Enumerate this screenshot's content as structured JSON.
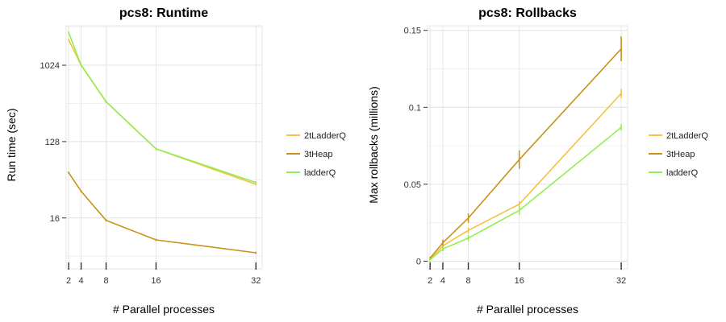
{
  "chart_data": [
    {
      "type": "line",
      "title": "pcs8: Runtime",
      "xlabel": "# Parallel processes",
      "ylabel": "Run time (sec)",
      "y_scale": "log2",
      "x": [
        2,
        4,
        8,
        16,
        32
      ],
      "xticks": [
        "2",
        "4",
        "8",
        "16",
        "32"
      ],
      "yticks": [
        "16",
        "128",
        "1024"
      ],
      "ytick_values": [
        16,
        128,
        1024
      ],
      "ylim": [
        4,
        3000
      ],
      "grid": true,
      "legend_position": "right",
      "series": [
        {
          "name": "2tLadderQ",
          "color": "#f5c242",
          "values": [
            2050,
            1024,
            380,
            105,
            40
          ]
        },
        {
          "name": "3tHeap",
          "color": "#c8921a",
          "values": [
            55,
            33,
            15,
            8.8,
            6.2
          ]
        },
        {
          "name": "ladderQ",
          "color": "#90ee50",
          "values": [
            2500,
            1024,
            380,
            105,
            42
          ]
        }
      ]
    },
    {
      "type": "line",
      "title": "pcs8: Rollbacks",
      "xlabel": "# Parallel processes",
      "ylabel": "Max rollbacks (millions)",
      "y_scale": "linear",
      "x": [
        2,
        4,
        8,
        16,
        32
      ],
      "xticks": [
        "2",
        "4",
        "8",
        "16",
        "32"
      ],
      "yticks": [
        "0",
        "0.05",
        "0.1",
        "0.15"
      ],
      "ytick_values": [
        0,
        0.05,
        0.1,
        0.15
      ],
      "ylim": [
        -0.005,
        0.153
      ],
      "grid": true,
      "legend_position": "right",
      "series": [
        {
          "name": "2tLadderQ",
          "color": "#f5c242",
          "values": [
            0.001,
            0.01,
            0.02,
            0.037,
            0.109
          ],
          "err": [
            0.001,
            0.0015,
            0.002,
            0.002,
            0.003
          ]
        },
        {
          "name": "3tHeap",
          "color": "#c8921a",
          "values": [
            0.002,
            0.012,
            0.028,
            0.066,
            0.138
          ],
          "err": [
            0.001,
            0.002,
            0.003,
            0.006,
            0.008
          ]
        },
        {
          "name": "ladderQ",
          "color": "#90ee50",
          "values": [
            0.001,
            0.008,
            0.015,
            0.033,
            0.087
          ],
          "err": [
            0.001,
            0.0015,
            0.002,
            0.003,
            0.002
          ]
        }
      ]
    }
  ]
}
